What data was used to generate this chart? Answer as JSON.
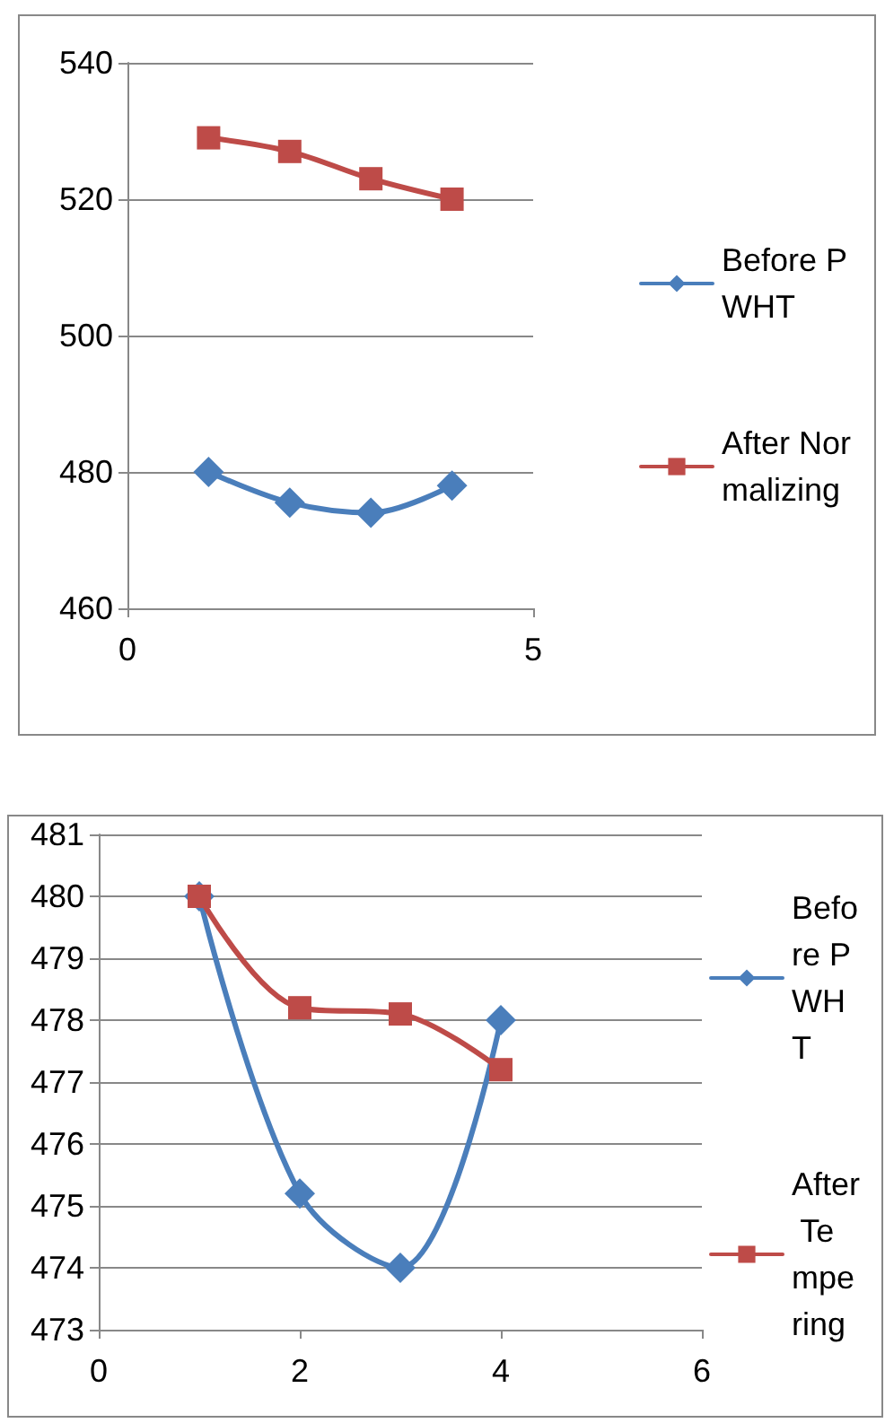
{
  "chart_data": [
    {
      "type": "line",
      "x": [
        1,
        2,
        3,
        4
      ],
      "xlim": [
        0,
        5
      ],
      "xticks": [
        0,
        5
      ],
      "ylim": [
        460,
        540
      ],
      "yticks": [
        460,
        480,
        500,
        520,
        540
      ],
      "grid": "y",
      "legend": "right",
      "series": [
        {
          "name": "Before PWHT",
          "color": "#4a7ebb",
          "marker": "diamond",
          "values": [
            480,
            475.5,
            474,
            478
          ]
        },
        {
          "name": "After Normalizing",
          "color": "#be4b48",
          "marker": "square",
          "values": [
            529,
            527,
            523,
            520
          ]
        }
      ]
    },
    {
      "type": "line",
      "x": [
        1,
        2,
        3,
        4
      ],
      "xlim": [
        0,
        6
      ],
      "xticks": [
        0,
        2,
        4,
        6
      ],
      "ylim": [
        473,
        481
      ],
      "yticks": [
        473,
        474,
        475,
        476,
        477,
        478,
        479,
        480,
        481
      ],
      "grid": "y",
      "legend": "right",
      "series": [
        {
          "name": "Before PWHT",
          "color": "#4a7ebb",
          "marker": "diamond",
          "values": [
            480,
            475.2,
            474,
            478
          ]
        },
        {
          "name": "After Tempering",
          "color": "#be4b48",
          "marker": "square",
          "values": [
            480,
            478.2,
            478.1,
            477.2
          ]
        }
      ]
    }
  ]
}
